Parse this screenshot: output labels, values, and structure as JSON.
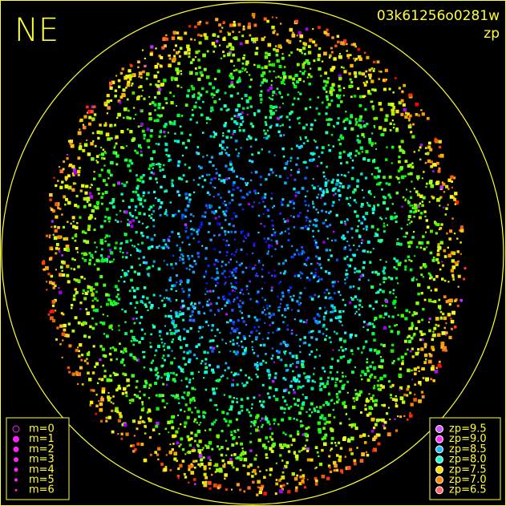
{
  "header": {
    "direction": "NE",
    "frame_id": "03k61256o0281w",
    "quantity": "zp"
  },
  "magnitude_legend": {
    "items": [
      "m=0",
      "m=1",
      "m=2",
      "m=3",
      "m=4",
      "m=5",
      "m=6"
    ]
  },
  "zp_legend": {
    "items": [
      {
        "label": "zp=9.5",
        "color": "#cc55ff"
      },
      {
        "label": "zp=9.0",
        "color": "#ff33ff"
      },
      {
        "label": "zp=8.5",
        "color": "#22bbff"
      },
      {
        "label": "zp=8.0",
        "color": "#22ffcc"
      },
      {
        "label": "zp=7.5",
        "color": "#ffdd00"
      },
      {
        "label": "zp=7.0",
        "color": "#ff8800"
      },
      {
        "label": "zp=6.5",
        "color": "#ff6666"
      }
    ]
  }
}
